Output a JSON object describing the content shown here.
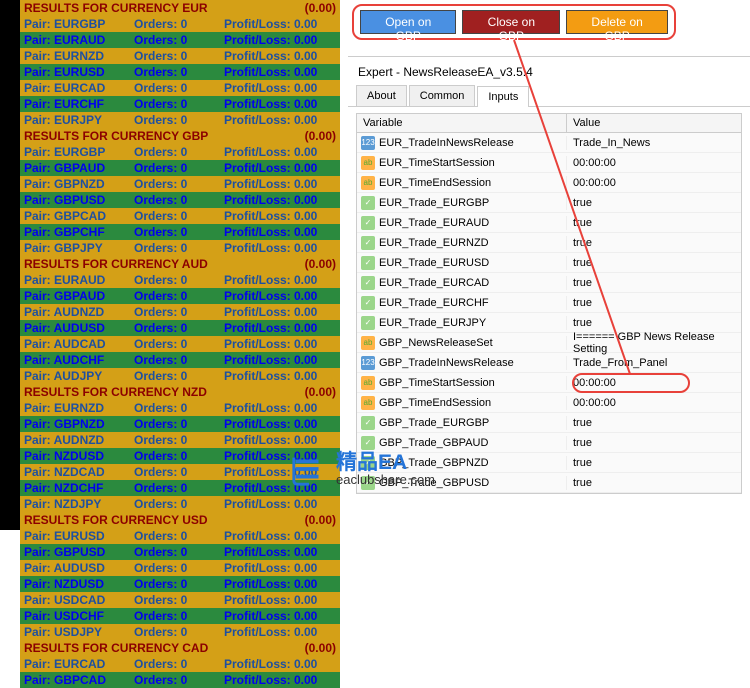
{
  "buttons": {
    "open": "Open on GBP",
    "close": "Close on GBP",
    "delete": "Delete on GBP"
  },
  "expert": {
    "title": "Expert - NewsReleaseEA_v3.5.4",
    "tabs": [
      "About",
      "Common",
      "Inputs"
    ],
    "active_tab": "Inputs",
    "grid_headers": {
      "variable": "Variable",
      "value": "Value"
    },
    "rows": [
      {
        "icon": "num",
        "var": "EUR_TradeInNewsRelease",
        "val": "Trade_In_News"
      },
      {
        "icon": "str",
        "var": "EUR_TimeStartSession",
        "val": "00:00:00"
      },
      {
        "icon": "str",
        "var": "EUR_TimeEndSession",
        "val": "00:00:00"
      },
      {
        "icon": "bool",
        "var": "EUR_Trade_EURGBP",
        "val": "true"
      },
      {
        "icon": "bool",
        "var": "EUR_Trade_EURAUD",
        "val": "true"
      },
      {
        "icon": "bool",
        "var": "EUR_Trade_EURNZD",
        "val": "true"
      },
      {
        "icon": "bool",
        "var": "EUR_Trade_EURUSD",
        "val": "true"
      },
      {
        "icon": "bool",
        "var": "EUR_Trade_EURCAD",
        "val": "true"
      },
      {
        "icon": "bool",
        "var": "EUR_Trade_EURCHF",
        "val": "true"
      },
      {
        "icon": "bool",
        "var": "EUR_Trade_EURJPY",
        "val": "true"
      },
      {
        "icon": "str",
        "var": "GBP_NewsReleaseSet",
        "val": "I====== GBP News Release Setting"
      },
      {
        "icon": "num",
        "var": "GBP_TradeInNewsRelease",
        "val": "Trade_From_Panel"
      },
      {
        "icon": "str",
        "var": "GBP_TimeStartSession",
        "val": "00:00:00"
      },
      {
        "icon": "str",
        "var": "GBP_TimeEndSession",
        "val": "00:00:00"
      },
      {
        "icon": "bool",
        "var": "GBP_Trade_EURGBP",
        "val": "true"
      },
      {
        "icon": "bool",
        "var": "GBP_Trade_GBPAUD",
        "val": "true"
      },
      {
        "icon": "bool",
        "var": "GBP_Trade_GBPNZD",
        "val": "true"
      },
      {
        "icon": "bool",
        "var": "GBP_Trade_GBPUSD",
        "val": "true"
      }
    ]
  },
  "results": {
    "sections": [
      {
        "currency": "EUR",
        "total": "(0.00)",
        "pairs": [
          "EURGBP",
          "EURAUD",
          "EURNZD",
          "EURUSD",
          "EURCAD",
          "EURCHF",
          "EURJPY"
        ]
      },
      {
        "currency": "GBP",
        "total": "(0.00)",
        "pairs": [
          "EURGBP",
          "GBPAUD",
          "GBPNZD",
          "GBPUSD",
          "GBPCAD",
          "GBPCHF",
          "GBPJPY"
        ]
      },
      {
        "currency": "AUD",
        "total": "(0.00)",
        "pairs": [
          "EURAUD",
          "GBPAUD",
          "AUDNZD",
          "AUDUSD",
          "AUDCAD",
          "AUDCHF",
          "AUDJPY"
        ]
      },
      {
        "currency": "NZD",
        "total": "(0.00)",
        "pairs": [
          "EURNZD",
          "GBPNZD",
          "AUDNZD",
          "NZDUSD",
          "NZDCAD",
          "NZDCHF",
          "NZDJPY"
        ]
      },
      {
        "currency": "USD",
        "total": "(0.00)",
        "pairs": [
          "EURUSD",
          "GBPUSD",
          "AUDUSD",
          "NZDUSD",
          "USDCAD",
          "USDCHF",
          "USDJPY"
        ]
      },
      {
        "currency": "CAD",
        "total": "(0.00)",
        "pairs": [
          "EURCAD",
          "GBPCAD"
        ]
      }
    ],
    "labels": {
      "header_prefix": "RESULTS  FOR  CURRENCY",
      "pair": "Pair:",
      "orders": "Orders: 0",
      "pl": "Profit/Loss:  0.00"
    }
  },
  "watermark": {
    "main": "精品EA",
    "sub": "eaclubshare.com"
  },
  "colors": {
    "btn_blue": "#4a90e2",
    "btn_red": "#a02020",
    "btn_orange": "#f39c12",
    "highlight": "#e8413a",
    "header_bg": "#d4a017",
    "header_fg": "#8b0000",
    "row_yellow": "#d4a017",
    "row_green": "#2b8a3e",
    "text_blue": "#1e50a0"
  }
}
